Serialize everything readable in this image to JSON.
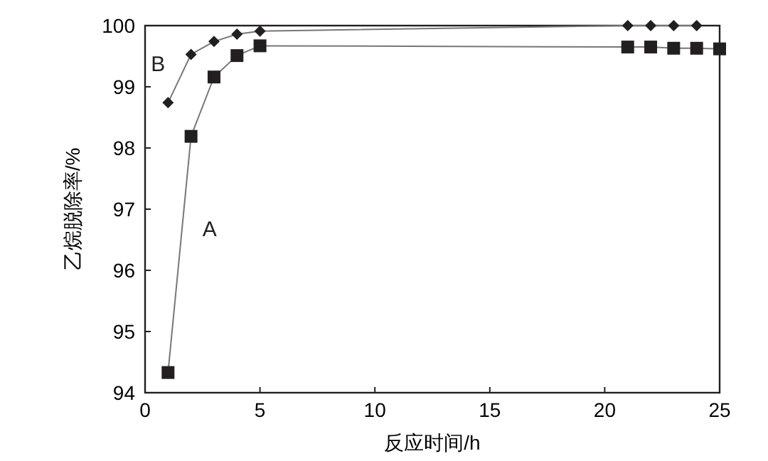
{
  "chart_data": {
    "type": "line",
    "xlabel": "反应时间/h",
    "ylabel": "乙烷脱除率/%",
    "xlim": [
      0,
      25
    ],
    "xticks": [
      0,
      5,
      10,
      15,
      20,
      25
    ],
    "ylim": [
      94,
      100
    ],
    "yticks": [
      94,
      95,
      96,
      97,
      98,
      99,
      100
    ],
    "grid": false,
    "series": [
      {
        "name": "A",
        "color": "#231f20",
        "marker": "square",
        "x": [
          1,
          2,
          3,
          4,
          5,
          21,
          22,
          23,
          24,
          25
        ],
        "values": [
          94.33,
          98.19,
          99.16,
          99.51,
          99.67,
          99.65,
          99.65,
          99.63,
          99.63,
          99.62
        ]
      },
      {
        "name": "B",
        "color": "#231f20",
        "marker": "diamond",
        "x": [
          1,
          2,
          3,
          4,
          5,
          21,
          22,
          23,
          24
        ],
        "values": [
          98.74,
          99.53,
          99.74,
          99.86,
          99.91,
          100,
          100,
          100,
          100
        ]
      }
    ]
  }
}
